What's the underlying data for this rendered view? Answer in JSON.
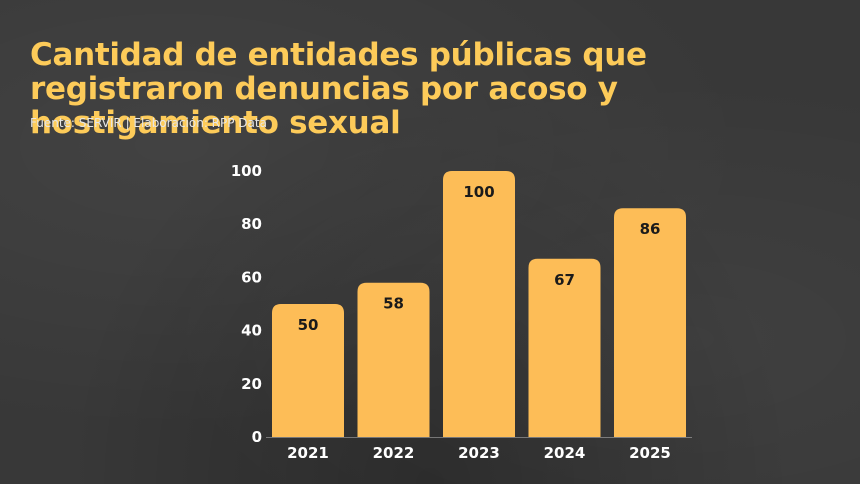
{
  "header": {
    "title": "Cantidad de entidades públicas que registraron denuncias por acoso y hostigamiento sexual",
    "source": "Fuente: SERVIR | Elaboración: RPP Data"
  },
  "colors": {
    "bar": "#FDBD57",
    "title": "#FDCB59",
    "background": "#383838",
    "text": "#FFFFFF",
    "value_label": "#1a1a1a"
  },
  "chart_data": {
    "type": "bar",
    "categories": [
      "2021",
      "2022",
      "2023",
      "2024",
      "2025"
    ],
    "values": [
      50,
      58,
      100,
      67,
      86
    ],
    "title": "Cantidad de entidades públicas que registraron denuncias por acoso y hostigamiento sexual",
    "xlabel": "",
    "ylabel": "",
    "ylim": [
      0,
      100
    ],
    "yticks": [
      0,
      20,
      40,
      60,
      80,
      100
    ],
    "grid": false,
    "legend": "none"
  }
}
